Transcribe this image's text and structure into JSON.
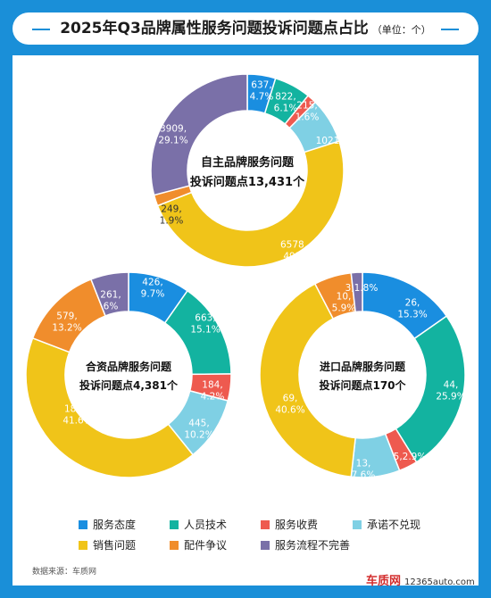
{
  "title": "2025年Q3品牌属性服务问题投诉问题点占比",
  "unit": "（单位：个）",
  "source": "数据来源：车质网",
  "brand_logo": "车质网",
  "brand_url": "12365auto.com",
  "colors": {
    "header": "#1a8fd8",
    "service_attitude": "#1a8ee0",
    "personnel_skill": "#13b3a0",
    "service_charge": "#ee5a4f",
    "promise": "#7fd0e4",
    "sales": "#f0c419",
    "parts": "#f08d2c",
    "process": "#7a70a8"
  },
  "legend": [
    {
      "label": "服务态度",
      "color": "#1a8ee0"
    },
    {
      "label": "人员技术",
      "color": "#13b3a0"
    },
    {
      "label": "服务收费",
      "color": "#ee5a4f"
    },
    {
      "label": "承诺不兑现",
      "color": "#7fd0e4"
    },
    {
      "label": "销售问题",
      "color": "#f0c419"
    },
    {
      "label": "配件争议",
      "color": "#f08d2c"
    },
    {
      "label": "服务流程不完善",
      "color": "#7a70a8"
    }
  ],
  "chart_data": [
    {
      "type": "pie",
      "title": "自主品牌服务问题投诉问题点13,431个",
      "center_label": [
        "自主品牌服务问题",
        "投诉问题点13,431个"
      ],
      "categories": [
        "服务态度",
        "人员技术",
        "服务收费",
        "承诺不兑现",
        "销售问题",
        "配件争议",
        "服务流程不完善"
      ],
      "values": [
        637,
        822,
        215,
        1021,
        6578,
        249,
        3909
      ],
      "percents": [
        "4.7%",
        "6.1%",
        "1.6%",
        "7.6%",
        "49%",
        "1.9%",
        "29.1%"
      ],
      "data_labels": [
        [
          "637,",
          "4.7%"
        ],
        [
          "822,",
          "6.1%"
        ],
        [
          "215,",
          "1.6%"
        ],
        [
          "1021,7.6%"
        ],
        [
          "6578,",
          "49%"
        ],
        [
          "249,",
          "1.9%"
        ],
        [
          "3909,",
          "29.1%"
        ]
      ]
    },
    {
      "type": "pie",
      "title": "合资品牌服务问题投诉问题点4,381个",
      "center_label": [
        "合资品牌服务问题",
        "投诉问题点4,381个"
      ],
      "categories": [
        "服务态度",
        "人员技术",
        "服务收费",
        "承诺不兑现",
        "销售问题",
        "配件争议",
        "服务流程不完善"
      ],
      "values": [
        426,
        663,
        184,
        445,
        1823,
        579,
        261
      ],
      "percents": [
        "9.7%",
        "15.1%",
        "4.2%",
        "10.2%",
        "41.6%",
        "13.2%",
        "6%"
      ],
      "data_labels": [
        [
          "426,",
          "9.7%"
        ],
        [
          "663,",
          "15.1%"
        ],
        [
          "184,",
          "4.2%"
        ],
        [
          "445,",
          "10.2%"
        ],
        [
          "1823,",
          "41.6%"
        ],
        [
          "579,",
          "13.2%"
        ],
        [
          "261,",
          "6%"
        ]
      ]
    },
    {
      "type": "pie",
      "title": "进口品牌服务问题投诉问题点170个",
      "center_label": [
        "进口品牌服务问题",
        "投诉问题点170个"
      ],
      "categories": [
        "服务态度",
        "人员技术",
        "服务收费",
        "承诺不兑现",
        "销售问题",
        "配件争议",
        "服务流程不完善"
      ],
      "values": [
        26,
        44,
        5,
        13,
        69,
        10,
        3
      ],
      "percents": [
        "15.3%",
        "25.9%",
        "2.9%",
        "7.6%",
        "40.6%",
        "5.9%",
        "1.8%"
      ],
      "data_labels": [
        [
          "26,",
          "15.3%"
        ],
        [
          "44,",
          "25.9%"
        ],
        [
          "5,2.9%"
        ],
        [
          "13,",
          "7.6%"
        ],
        [
          "69,",
          "40.6%"
        ],
        [
          "10,",
          "5.9%"
        ],
        [
          "3,1.8%"
        ]
      ]
    }
  ]
}
